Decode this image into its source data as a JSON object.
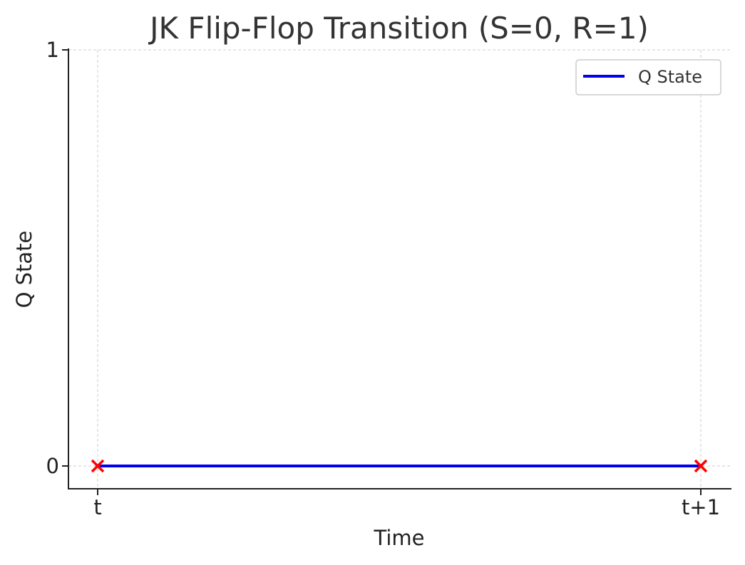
{
  "chart_data": {
    "type": "line",
    "title": "JK Flip-Flop Transition (S=0, R=1)",
    "xlabel": "Time",
    "ylabel": "Q State",
    "x_categories": [
      "t",
      "t+1"
    ],
    "y_ticks": [
      "0",
      "1"
    ],
    "ylim": [
      0,
      1
    ],
    "grid": true,
    "legend_position": "top-right",
    "series": [
      {
        "name": "Q State",
        "x": [
          "t",
          "t+1"
        ],
        "values": [
          0,
          0
        ],
        "color": "#0000ee"
      }
    ],
    "markers": {
      "shape": "x",
      "color": "#ff0000",
      "points": [
        {
          "x": "t",
          "y": 0
        },
        {
          "x": "t+1",
          "y": 0
        }
      ]
    }
  }
}
